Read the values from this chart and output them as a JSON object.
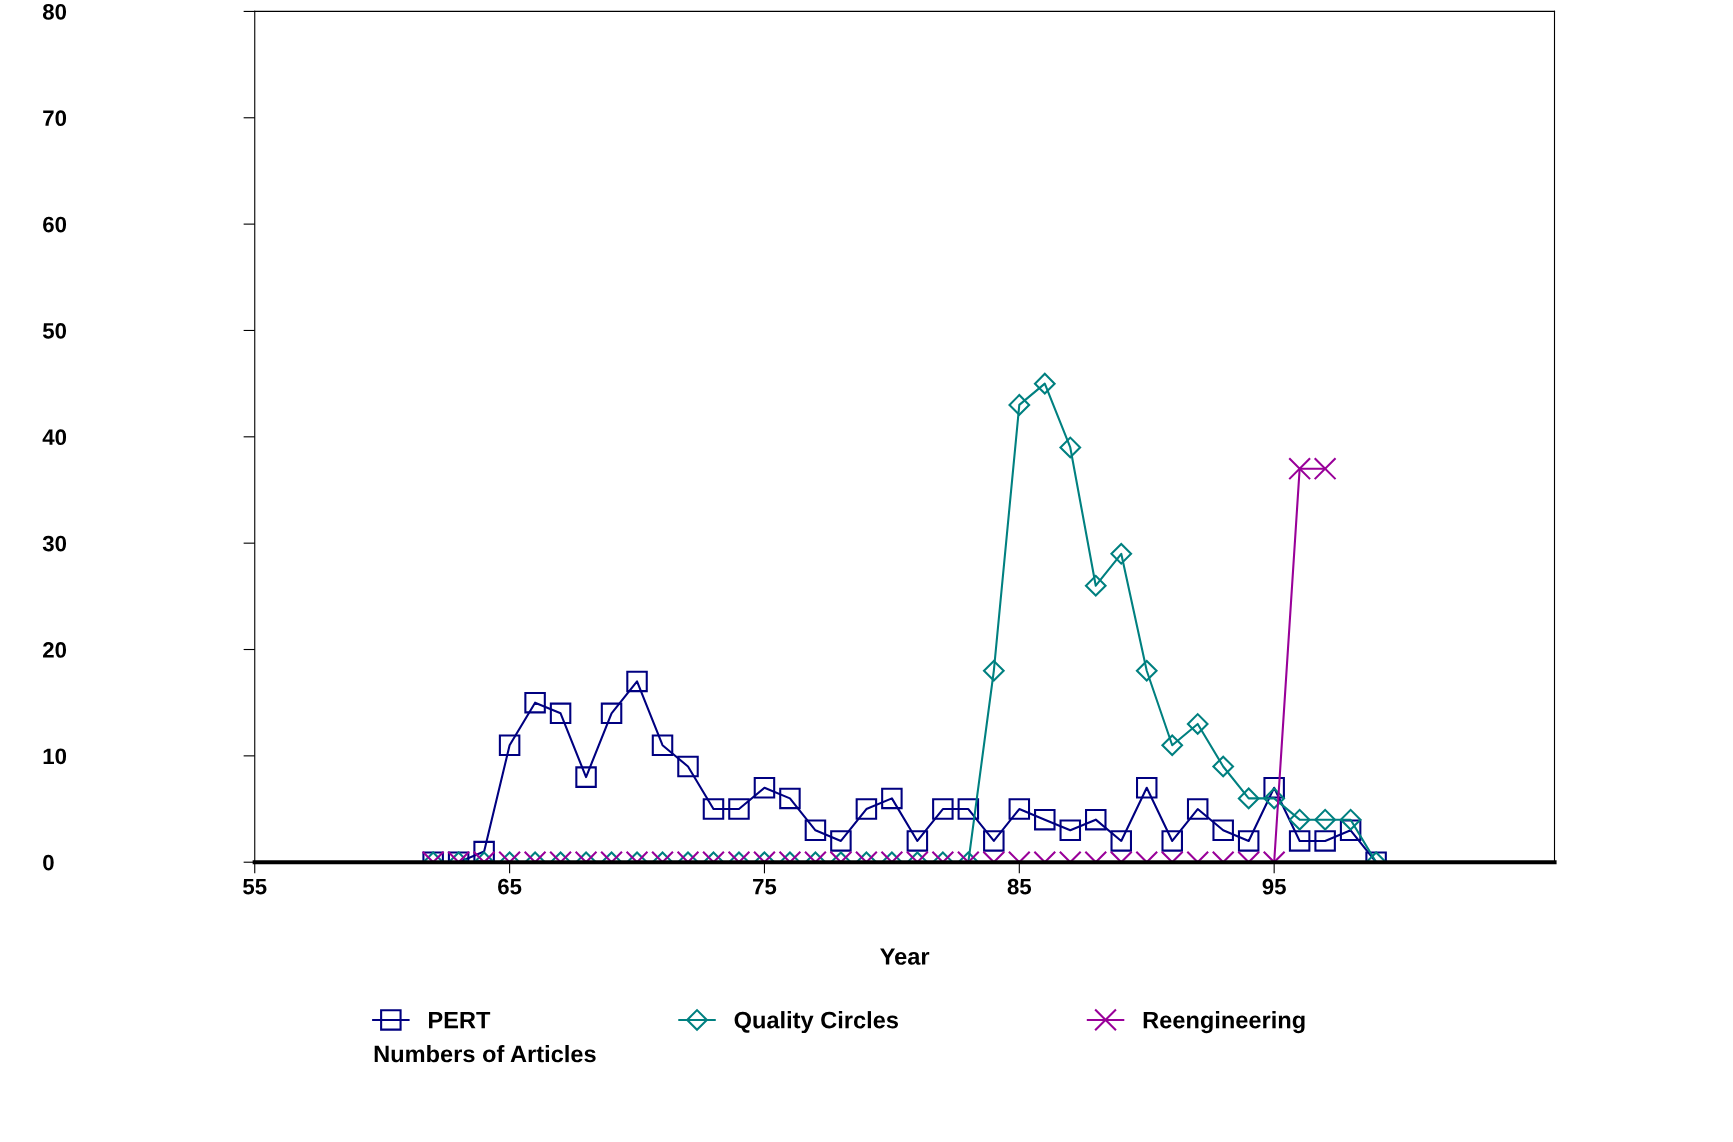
{
  "chart_data": {
    "type": "line",
    "xlabel": "Year",
    "legend_title": "Numbers of Articles",
    "x": [
      62,
      63,
      64,
      65,
      66,
      67,
      68,
      69,
      70,
      71,
      72,
      73,
      74,
      75,
      76,
      77,
      78,
      79,
      80,
      81,
      82,
      83,
      84,
      85,
      86,
      87,
      88,
      89,
      90,
      91,
      92,
      93,
      94,
      95,
      96,
      97,
      98,
      99
    ],
    "series": [
      {
        "name": "PERT",
        "color": "#000080",
        "marker": "square",
        "values": [
          0,
          0,
          1,
          11,
          15,
          14,
          8,
          14,
          17,
          11,
          9,
          5,
          5,
          7,
          6,
          3,
          2,
          5,
          6,
          2,
          5,
          5,
          2,
          5,
          4,
          3,
          4,
          2,
          7,
          2,
          5,
          3,
          2,
          7,
          2,
          2,
          3,
          0
        ]
      },
      {
        "name": "Quality Circles",
        "color": "#008080",
        "marker": "diamond",
        "values": [
          0,
          0,
          0,
          0,
          0,
          0,
          0,
          0,
          0,
          0,
          0,
          0,
          0,
          0,
          0,
          0,
          0,
          0,
          0,
          0,
          0,
          0,
          18,
          43,
          45,
          39,
          26,
          29,
          18,
          11,
          13,
          9,
          6,
          6,
          4,
          4,
          4,
          0
        ]
      },
      {
        "name": "Reengineering",
        "color": "#990099",
        "marker": "cross",
        "values": [
          0,
          0,
          0,
          0,
          0,
          0,
          0,
          0,
          0,
          0,
          0,
          0,
          0,
          0,
          0,
          0,
          0,
          0,
          0,
          0,
          0,
          0,
          0,
          0,
          0,
          0,
          0,
          0,
          0,
          0,
          0,
          0,
          0,
          0,
          37,
          37,
          null,
          null
        ]
      }
    ],
    "xlim": [
      55,
      106
    ],
    "ylim": [
      0,
      80
    ],
    "xticks": [
      55,
      65,
      75,
      85,
      95
    ],
    "yticks": [
      0,
      10,
      20,
      30,
      40,
      50,
      60,
      70,
      80
    ],
    "grid": false,
    "legend": "bottom",
    "line_style": "solid"
  }
}
